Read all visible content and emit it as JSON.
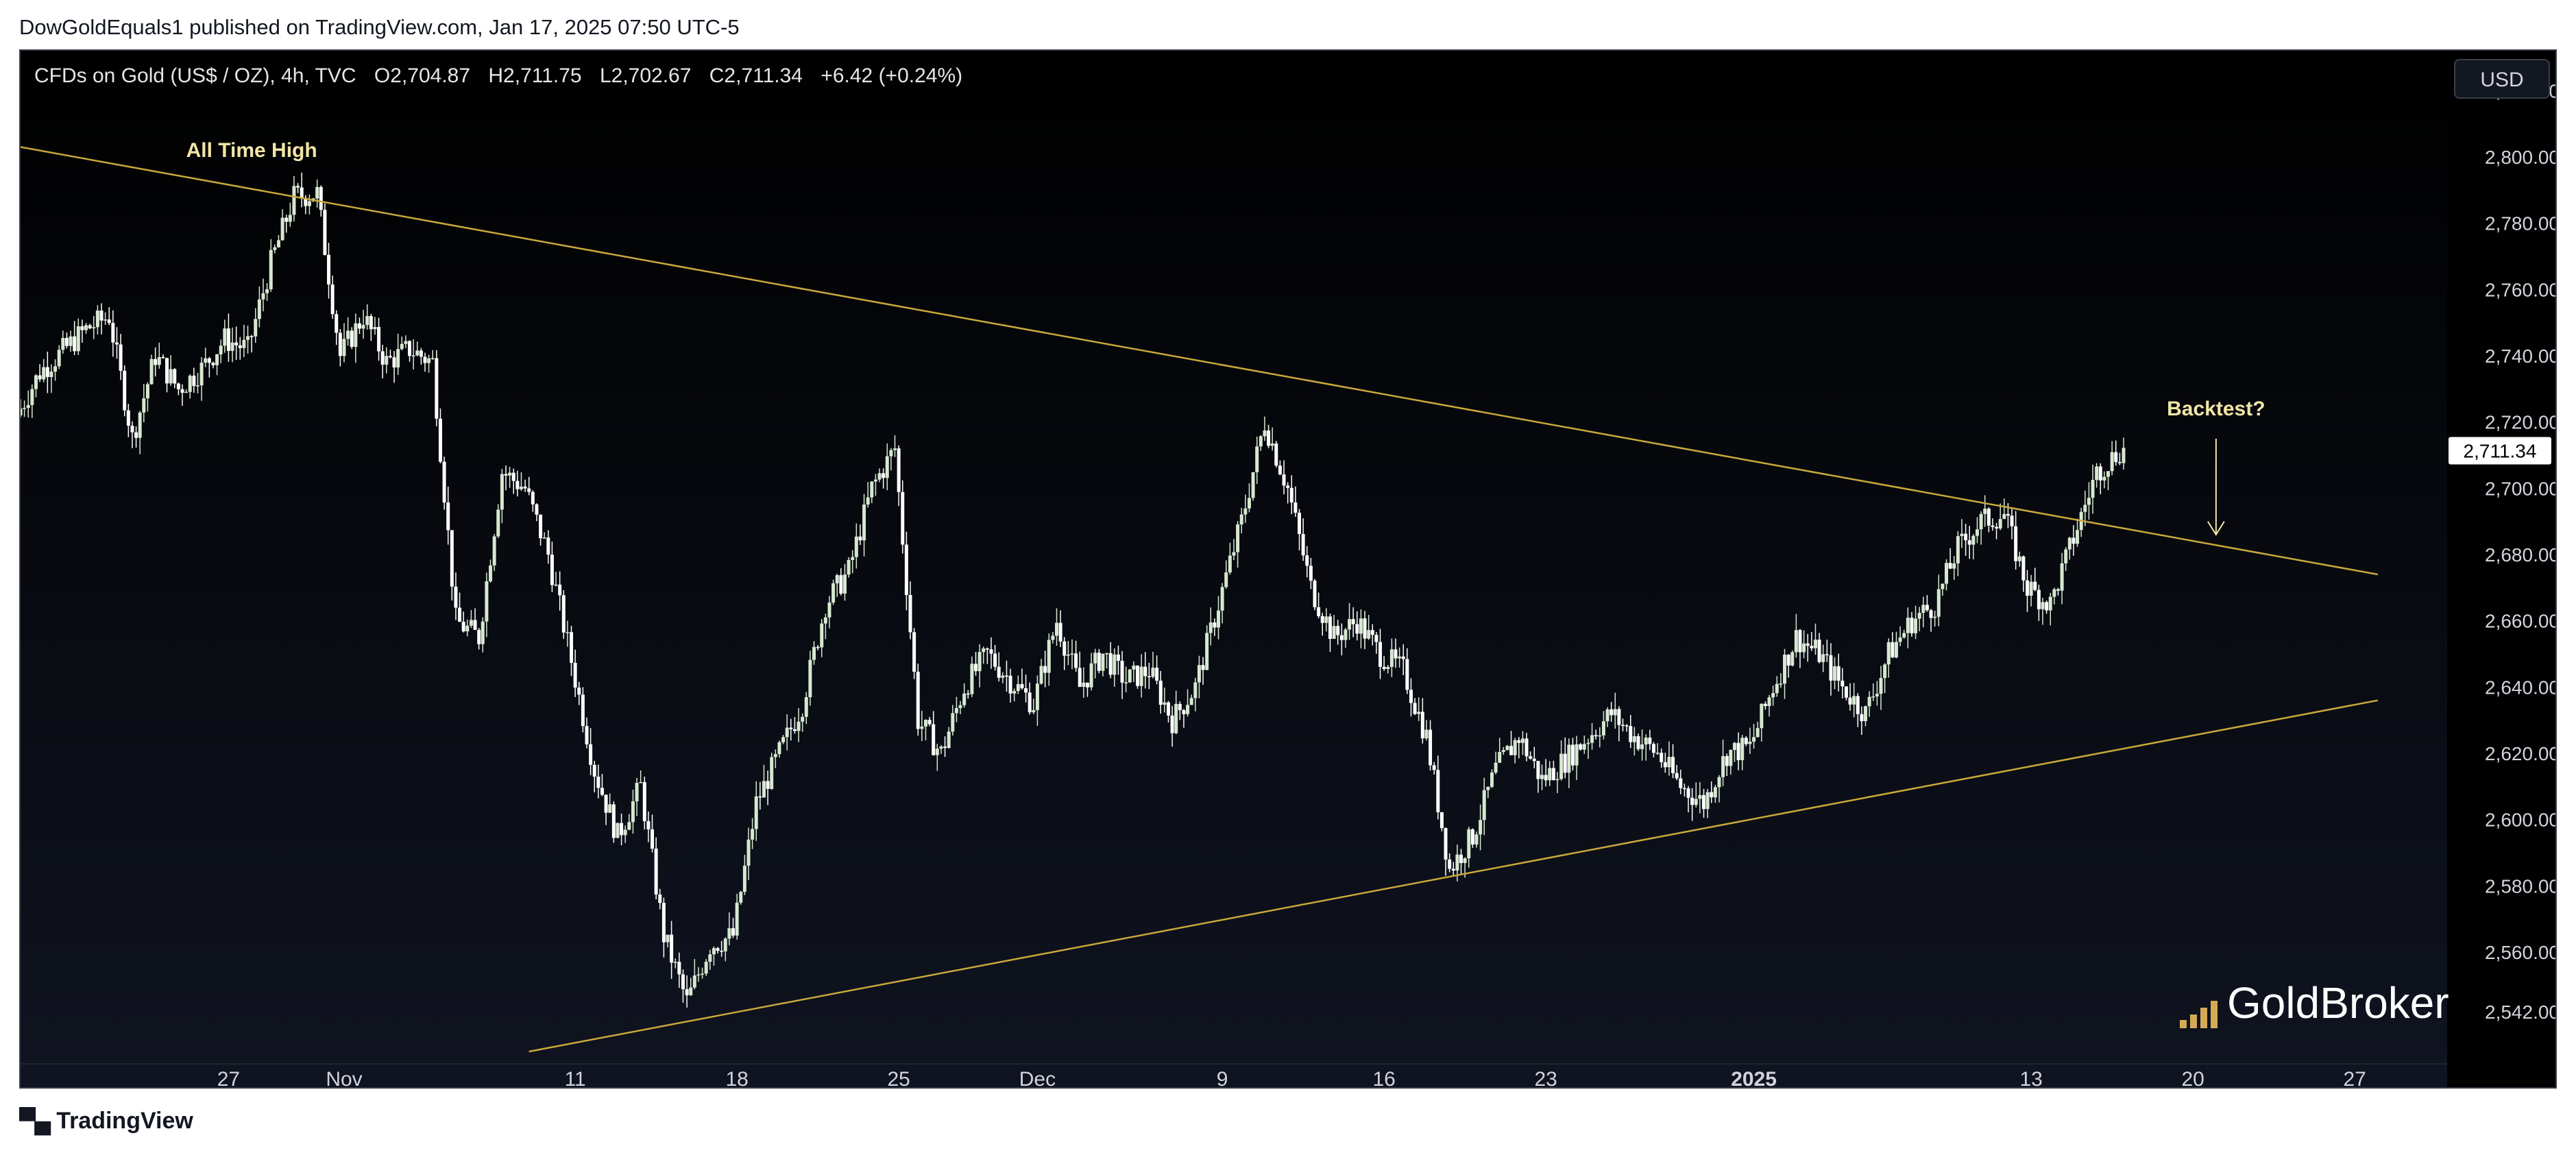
{
  "caption": "DowGoldEquals1 published on TradingView.com, Jan 17, 2025 07:50 UTC-5",
  "legend": {
    "symbol": "CFDs on Gold (US$ / OZ), 4h, TVC",
    "open": "O2,704.87",
    "high": "H2,711.75",
    "low": "L2,702.67",
    "close": "C2,711.34",
    "change": "+6.42 (+0.24%)"
  },
  "currency": "USD",
  "brand": "TradingView",
  "watermark": "GoldBroker",
  "colors": {
    "candle_up": "#d6e8d0",
    "candle_down": "#ffffff",
    "trendline": "#c9a93c",
    "annotation": "#f2e6a6",
    "price_label_bg": "#ffffff"
  },
  "chart_data": {
    "type": "candlestick",
    "title": "CFDs on Gold (US$ / OZ), 4h, TVC",
    "ylim": [
      2530,
      2830
    ],
    "y_ticks": [
      2542,
      2560,
      2580,
      2600,
      2620,
      2640,
      2660,
      2680,
      2700,
      2720,
      2740,
      2760,
      2780,
      2800,
      2820
    ],
    "y_tick_labels": [
      "2,542.00",
      "2,560.00",
      "2,580.00",
      "2,600.00",
      "2,620.00",
      "2,640.00",
      "2,660.00",
      "2,680.00",
      "2,700.00",
      "2,720.00",
      "2,740.00",
      "2,760.00",
      "2,780.00",
      "2,800.00",
      "2,820.00"
    ],
    "x_range": [
      "2024-10-18",
      "2025-01-31"
    ],
    "x_ticks": [
      {
        "date": "2024-10-27",
        "label": "27"
      },
      {
        "date": "2024-11-01",
        "label": "Nov"
      },
      {
        "date": "2024-11-11",
        "label": "11"
      },
      {
        "date": "2024-11-18",
        "label": "18"
      },
      {
        "date": "2024-11-25",
        "label": "25"
      },
      {
        "date": "2024-12-01",
        "label": "Dec"
      },
      {
        "date": "2024-12-09",
        "label": "9"
      },
      {
        "date": "2024-12-16",
        "label": "16"
      },
      {
        "date": "2024-12-23",
        "label": "23"
      },
      {
        "date": "2025-01-01",
        "label": "2025"
      },
      {
        "date": "2025-01-13",
        "label": "13"
      },
      {
        "date": "2025-01-20",
        "label": "20"
      },
      {
        "date": "2025-01-27",
        "label": "27"
      }
    ],
    "last_price": 2711.34,
    "last_price_label": "2,711.34",
    "path": [
      [
        "2024-10-18",
        2722
      ],
      [
        "2024-10-19",
        2735
      ],
      [
        "2024-10-21",
        2748
      ],
      [
        "2024-10-22",
        2752
      ],
      [
        "2024-10-23",
        2715
      ],
      [
        "2024-10-24",
        2740
      ],
      [
        "2024-10-25",
        2730
      ],
      [
        "2024-10-26",
        2736
      ],
      [
        "2024-10-27",
        2745
      ],
      [
        "2024-10-28",
        2742
      ],
      [
        "2024-10-29",
        2768
      ],
      [
        "2024-10-30",
        2788
      ],
      [
        "2024-10-31",
        2789
      ],
      [
        "2024-11-01",
        2740
      ],
      [
        "2024-11-02",
        2752
      ],
      [
        "2024-11-03",
        2738
      ],
      [
        "2024-11-04",
        2742
      ],
      [
        "2024-11-05",
        2738
      ],
      [
        "2024-11-06",
        2660
      ],
      [
        "2024-11-07",
        2655
      ],
      [
        "2024-11-08",
        2705
      ],
      [
        "2024-11-09",
        2700
      ],
      [
        "2024-11-10",
        2680
      ],
      [
        "2024-11-11",
        2648
      ],
      [
        "2024-11-12",
        2615
      ],
      [
        "2024-11-13",
        2595
      ],
      [
        "2024-11-14",
        2610
      ],
      [
        "2024-11-15",
        2565
      ],
      [
        "2024-11-16",
        2545
      ],
      [
        "2024-11-17",
        2562
      ],
      [
        "2024-11-18",
        2565
      ],
      [
        "2024-11-19",
        2605
      ],
      [
        "2024-11-20",
        2620
      ],
      [
        "2024-11-21",
        2635
      ],
      [
        "2024-11-22",
        2665
      ],
      [
        "2024-11-23",
        2675
      ],
      [
        "2024-11-24",
        2700
      ],
      [
        "2024-11-25",
        2712
      ],
      [
        "2024-11-26",
        2630
      ],
      [
        "2024-11-27",
        2620
      ],
      [
        "2024-11-28",
        2640
      ],
      [
        "2024-11-29",
        2650
      ],
      [
        "2024-11-30",
        2642
      ],
      [
        "2024-12-01",
        2635
      ],
      [
        "2024-12-02",
        2660
      ],
      [
        "2024-12-03",
        2640
      ],
      [
        "2024-12-04",
        2650
      ],
      [
        "2024-12-05",
        2642
      ],
      [
        "2024-12-06",
        2645
      ],
      [
        "2024-12-07",
        2630
      ],
      [
        "2024-12-08",
        2640
      ],
      [
        "2024-12-09",
        2665
      ],
      [
        "2024-12-10",
        2690
      ],
      [
        "2024-12-11",
        2720
      ],
      [
        "2024-12-12",
        2700
      ],
      [
        "2024-12-13",
        2670
      ],
      [
        "2024-12-14",
        2655
      ],
      [
        "2024-12-15",
        2660
      ],
      [
        "2024-12-16",
        2650
      ],
      [
        "2024-12-17",
        2645
      ],
      [
        "2024-12-18",
        2625
      ],
      [
        "2024-12-19",
        2585
      ],
      [
        "2024-12-20",
        2595
      ],
      [
        "2024-12-21",
        2615
      ],
      [
        "2024-12-22",
        2625
      ],
      [
        "2024-12-23",
        2612
      ],
      [
        "2024-12-24",
        2618
      ],
      [
        "2024-12-25",
        2625
      ],
      [
        "2024-12-26",
        2632
      ],
      [
        "2024-12-27",
        2625
      ],
      [
        "2024-12-28",
        2620
      ],
      [
        "2024-12-29",
        2610
      ],
      [
        "2024-12-30",
        2605
      ],
      [
        "2024-12-31",
        2620
      ],
      [
        "2025-01-01",
        2622
      ],
      [
        "2025-01-02",
        2640
      ],
      [
        "2025-01-03",
        2655
      ],
      [
        "2025-01-04",
        2650
      ],
      [
        "2025-01-05",
        2640
      ],
      [
        "2025-01-06",
        2632
      ],
      [
        "2025-01-07",
        2650
      ],
      [
        "2025-01-08",
        2660
      ],
      [
        "2025-01-09",
        2665
      ],
      [
        "2025-01-10",
        2682
      ],
      [
        "2025-01-11",
        2690
      ],
      [
        "2025-01-12",
        2692
      ],
      [
        "2025-01-13",
        2670
      ],
      [
        "2025-01-14",
        2665
      ],
      [
        "2025-01-15",
        2685
      ],
      [
        "2025-01-16",
        2705
      ],
      [
        "2025-01-17",
        2711.34
      ]
    ],
    "trendlines": [
      {
        "name": "upper",
        "from": [
          "2024-10-18",
          2803
        ],
        "to": [
          "2025-01-28",
          2674
        ]
      },
      {
        "name": "lower",
        "from": [
          "2024-11-09",
          2530
        ],
        "to": [
          "2025-01-28",
          2636
        ]
      }
    ],
    "annotations": [
      {
        "text": "All Time High",
        "date": "2024-10-28",
        "price": 2800
      },
      {
        "text": "Backtest?",
        "date": "2025-01-21",
        "price": 2722
      }
    ]
  }
}
